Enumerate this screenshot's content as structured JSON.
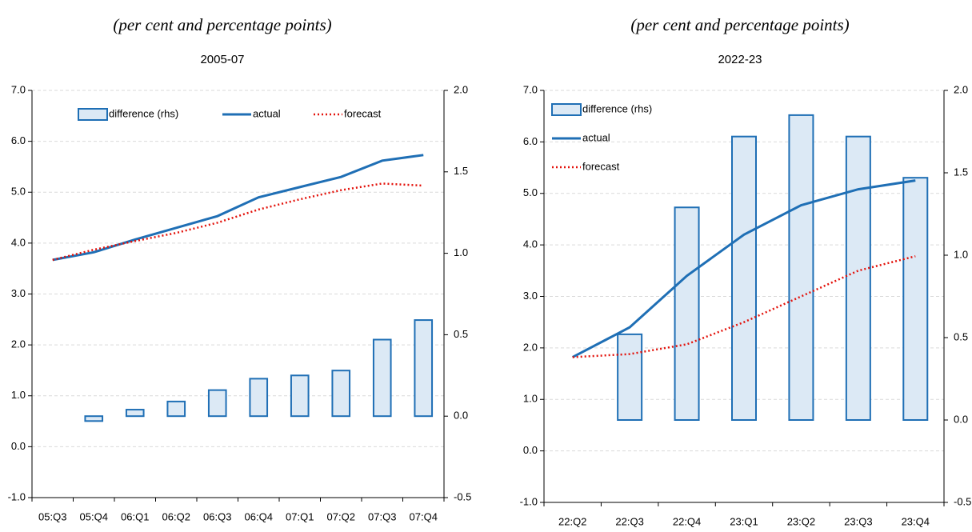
{
  "chart_data": [
    {
      "type": "combo",
      "title": "(per cent and percentage points)",
      "subtitle": "2005-07",
      "categories": [
        "05:Q3",
        "05:Q4",
        "06:Q1",
        "06:Q2",
        "06:Q3",
        "06:Q4",
        "07:Q1",
        "07:Q2",
        "07:Q3",
        "07:Q4"
      ],
      "series": [
        {
          "name": "difference (rhs)",
          "kind": "bar",
          "axis": "y2",
          "color": "#1f6fb5",
          "fill": "#dce9f5",
          "values": [
            null,
            -0.03,
            0.04,
            0.09,
            0.16,
            0.23,
            0.25,
            0.28,
            0.47,
            0.59
          ]
        },
        {
          "name": "actual",
          "kind": "line",
          "color": "#1f6fb5",
          "values": [
            3.67,
            3.82,
            4.07,
            4.3,
            4.53,
            4.9,
            5.1,
            5.3,
            5.62,
            5.73
          ]
        },
        {
          "name": "forecast",
          "kind": "line",
          "style": "dotted",
          "color": "#e3120b",
          "values": [
            3.67,
            3.87,
            4.04,
            4.2,
            4.4,
            4.66,
            4.86,
            5.04,
            5.17,
            5.13
          ]
        }
      ],
      "ylim": [
        -1,
        7
      ],
      "yticks": [
        {
          "value": -1,
          "label": "-1.0"
        },
        {
          "value": 0,
          "label": "0.0"
        },
        {
          "value": 1,
          "label": "1.0"
        },
        {
          "value": 2,
          "label": "2.0"
        },
        {
          "value": 3,
          "label": "3.0"
        },
        {
          "value": 4,
          "label": "4.0"
        },
        {
          "value": 5,
          "label": "5.0"
        },
        {
          "value": 6,
          "label": "6.0"
        },
        {
          "value": 7,
          "label": "7.0"
        }
      ],
      "y2lim": [
        -0.5,
        2
      ],
      "y2ticks": [
        {
          "value": -0.5,
          "label": "-0.5"
        },
        {
          "value": 0,
          "label": "0.0"
        },
        {
          "value": 0.5,
          "label": "0.5"
        },
        {
          "value": 1,
          "label": "1.0"
        },
        {
          "value": 1.5,
          "label": "1.5"
        },
        {
          "value": 2,
          "label": "2.0"
        }
      ],
      "grid": true,
      "legend": "top"
    },
    {
      "type": "combo",
      "title": "(per cent and percentage points)",
      "subtitle": "2022-23",
      "categories": [
        "22:Q2",
        "22:Q3",
        "22:Q4",
        "23:Q1",
        "23:Q2",
        "23:Q3",
        "23:Q4"
      ],
      "series": [
        {
          "name": "difference (rhs)",
          "kind": "bar",
          "axis": "y2",
          "color": "#1f6fb5",
          "fill": "#dce9f5",
          "values": [
            null,
            0.52,
            1.29,
            1.72,
            1.85,
            1.72,
            1.47
          ]
        },
        {
          "name": "actual",
          "kind": "line",
          "color": "#1f6fb5",
          "values": [
            1.82,
            2.4,
            3.4,
            4.2,
            4.77,
            5.08,
            5.25
          ]
        },
        {
          "name": "forecast",
          "kind": "line",
          "style": "dotted",
          "color": "#e3120b",
          "values": [
            1.82,
            1.88,
            2.07,
            2.5,
            3.0,
            3.5,
            3.78
          ]
        }
      ],
      "ylim": [
        -1,
        7
      ],
      "yticks": [
        {
          "value": -1,
          "label": "-1.0"
        },
        {
          "value": 0,
          "label": "0.0"
        },
        {
          "value": 1,
          "label": "1.0"
        },
        {
          "value": 2,
          "label": "2.0"
        },
        {
          "value": 3,
          "label": "3.0"
        },
        {
          "value": 4,
          "label": "4.0"
        },
        {
          "value": 5,
          "label": "5.0"
        },
        {
          "value": 6,
          "label": "6.0"
        },
        {
          "value": 7,
          "label": "7.0"
        }
      ],
      "y2lim": [
        -0.5,
        2
      ],
      "y2ticks": [
        {
          "value": -0.5,
          "label": "-0.5"
        },
        {
          "value": 0,
          "label": "0.0"
        },
        {
          "value": 0.5,
          "label": "0.5"
        },
        {
          "value": 1,
          "label": "1.0"
        },
        {
          "value": 1.5,
          "label": "1.5"
        },
        {
          "value": 2,
          "label": "2.0"
        }
      ],
      "grid": true,
      "legend": "top-left"
    }
  ]
}
